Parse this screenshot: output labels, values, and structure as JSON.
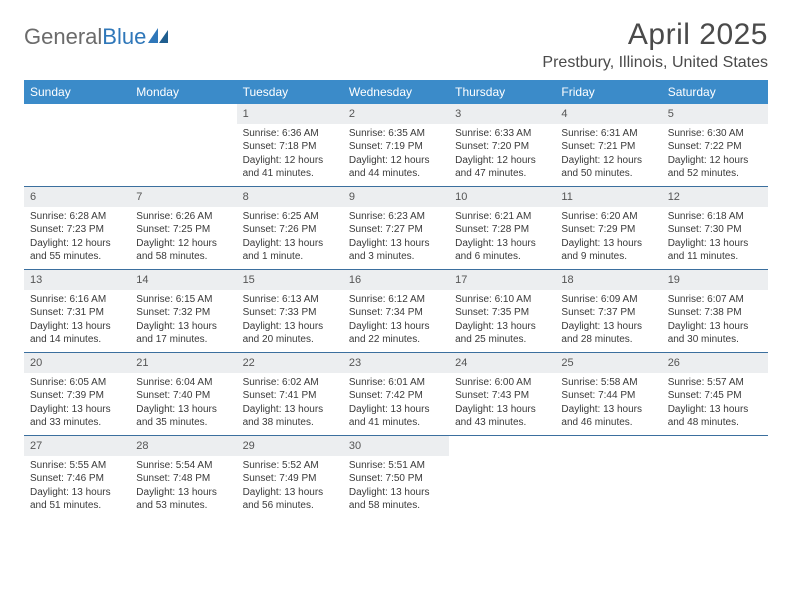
{
  "brand": {
    "part1": "General",
    "part2": "Blue"
  },
  "title": "April 2025",
  "location": "Prestbury, Illinois, United States",
  "colors": {
    "header_bar": "#3b8bc9",
    "week_divider": "#3b6f9e",
    "daynum_bg": "#eceef0",
    "brand_gray": "#6b6b6b",
    "brand_blue": "#2f77b9"
  },
  "weekdays": [
    "Sunday",
    "Monday",
    "Tuesday",
    "Wednesday",
    "Thursday",
    "Friday",
    "Saturday"
  ],
  "weeks": [
    [
      {
        "empty": true
      },
      {
        "empty": true
      },
      {
        "day": "1",
        "sunrise": "Sunrise: 6:36 AM",
        "sunset": "Sunset: 7:18 PM",
        "daylight": "Daylight: 12 hours and 41 minutes."
      },
      {
        "day": "2",
        "sunrise": "Sunrise: 6:35 AM",
        "sunset": "Sunset: 7:19 PM",
        "daylight": "Daylight: 12 hours and 44 minutes."
      },
      {
        "day": "3",
        "sunrise": "Sunrise: 6:33 AM",
        "sunset": "Sunset: 7:20 PM",
        "daylight": "Daylight: 12 hours and 47 minutes."
      },
      {
        "day": "4",
        "sunrise": "Sunrise: 6:31 AM",
        "sunset": "Sunset: 7:21 PM",
        "daylight": "Daylight: 12 hours and 50 minutes."
      },
      {
        "day": "5",
        "sunrise": "Sunrise: 6:30 AM",
        "sunset": "Sunset: 7:22 PM",
        "daylight": "Daylight: 12 hours and 52 minutes."
      }
    ],
    [
      {
        "day": "6",
        "sunrise": "Sunrise: 6:28 AM",
        "sunset": "Sunset: 7:23 PM",
        "daylight": "Daylight: 12 hours and 55 minutes."
      },
      {
        "day": "7",
        "sunrise": "Sunrise: 6:26 AM",
        "sunset": "Sunset: 7:25 PM",
        "daylight": "Daylight: 12 hours and 58 minutes."
      },
      {
        "day": "8",
        "sunrise": "Sunrise: 6:25 AM",
        "sunset": "Sunset: 7:26 PM",
        "daylight": "Daylight: 13 hours and 1 minute."
      },
      {
        "day": "9",
        "sunrise": "Sunrise: 6:23 AM",
        "sunset": "Sunset: 7:27 PM",
        "daylight": "Daylight: 13 hours and 3 minutes."
      },
      {
        "day": "10",
        "sunrise": "Sunrise: 6:21 AM",
        "sunset": "Sunset: 7:28 PM",
        "daylight": "Daylight: 13 hours and 6 minutes."
      },
      {
        "day": "11",
        "sunrise": "Sunrise: 6:20 AM",
        "sunset": "Sunset: 7:29 PM",
        "daylight": "Daylight: 13 hours and 9 minutes."
      },
      {
        "day": "12",
        "sunrise": "Sunrise: 6:18 AM",
        "sunset": "Sunset: 7:30 PM",
        "daylight": "Daylight: 13 hours and 11 minutes."
      }
    ],
    [
      {
        "day": "13",
        "sunrise": "Sunrise: 6:16 AM",
        "sunset": "Sunset: 7:31 PM",
        "daylight": "Daylight: 13 hours and 14 minutes."
      },
      {
        "day": "14",
        "sunrise": "Sunrise: 6:15 AM",
        "sunset": "Sunset: 7:32 PM",
        "daylight": "Daylight: 13 hours and 17 minutes."
      },
      {
        "day": "15",
        "sunrise": "Sunrise: 6:13 AM",
        "sunset": "Sunset: 7:33 PM",
        "daylight": "Daylight: 13 hours and 20 minutes."
      },
      {
        "day": "16",
        "sunrise": "Sunrise: 6:12 AM",
        "sunset": "Sunset: 7:34 PM",
        "daylight": "Daylight: 13 hours and 22 minutes."
      },
      {
        "day": "17",
        "sunrise": "Sunrise: 6:10 AM",
        "sunset": "Sunset: 7:35 PM",
        "daylight": "Daylight: 13 hours and 25 minutes."
      },
      {
        "day": "18",
        "sunrise": "Sunrise: 6:09 AM",
        "sunset": "Sunset: 7:37 PM",
        "daylight": "Daylight: 13 hours and 28 minutes."
      },
      {
        "day": "19",
        "sunrise": "Sunrise: 6:07 AM",
        "sunset": "Sunset: 7:38 PM",
        "daylight": "Daylight: 13 hours and 30 minutes."
      }
    ],
    [
      {
        "day": "20",
        "sunrise": "Sunrise: 6:05 AM",
        "sunset": "Sunset: 7:39 PM",
        "daylight": "Daylight: 13 hours and 33 minutes."
      },
      {
        "day": "21",
        "sunrise": "Sunrise: 6:04 AM",
        "sunset": "Sunset: 7:40 PM",
        "daylight": "Daylight: 13 hours and 35 minutes."
      },
      {
        "day": "22",
        "sunrise": "Sunrise: 6:02 AM",
        "sunset": "Sunset: 7:41 PM",
        "daylight": "Daylight: 13 hours and 38 minutes."
      },
      {
        "day": "23",
        "sunrise": "Sunrise: 6:01 AM",
        "sunset": "Sunset: 7:42 PM",
        "daylight": "Daylight: 13 hours and 41 minutes."
      },
      {
        "day": "24",
        "sunrise": "Sunrise: 6:00 AM",
        "sunset": "Sunset: 7:43 PM",
        "daylight": "Daylight: 13 hours and 43 minutes."
      },
      {
        "day": "25",
        "sunrise": "Sunrise: 5:58 AM",
        "sunset": "Sunset: 7:44 PM",
        "daylight": "Daylight: 13 hours and 46 minutes."
      },
      {
        "day": "26",
        "sunrise": "Sunrise: 5:57 AM",
        "sunset": "Sunset: 7:45 PM",
        "daylight": "Daylight: 13 hours and 48 minutes."
      }
    ],
    [
      {
        "day": "27",
        "sunrise": "Sunrise: 5:55 AM",
        "sunset": "Sunset: 7:46 PM",
        "daylight": "Daylight: 13 hours and 51 minutes."
      },
      {
        "day": "28",
        "sunrise": "Sunrise: 5:54 AM",
        "sunset": "Sunset: 7:48 PM",
        "daylight": "Daylight: 13 hours and 53 minutes."
      },
      {
        "day": "29",
        "sunrise": "Sunrise: 5:52 AM",
        "sunset": "Sunset: 7:49 PM",
        "daylight": "Daylight: 13 hours and 56 minutes."
      },
      {
        "day": "30",
        "sunrise": "Sunrise: 5:51 AM",
        "sunset": "Sunset: 7:50 PM",
        "daylight": "Daylight: 13 hours and 58 minutes."
      },
      {
        "empty": true
      },
      {
        "empty": true
      },
      {
        "empty": true
      }
    ]
  ]
}
